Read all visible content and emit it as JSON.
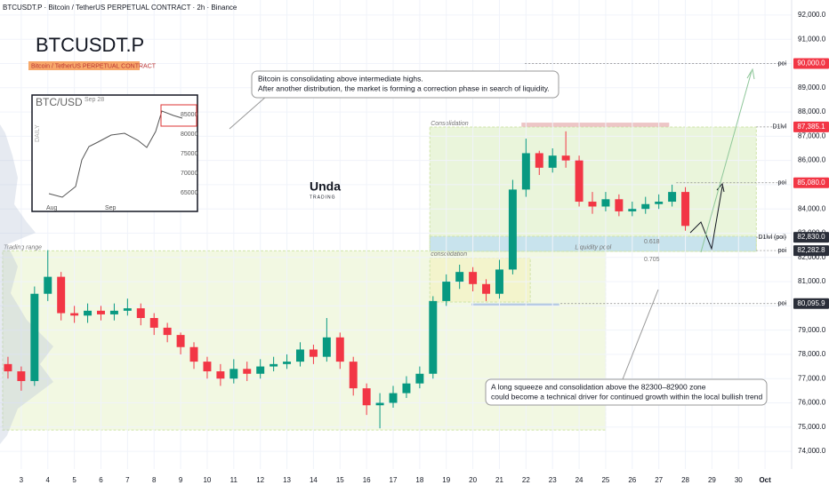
{
  "header": "BTCUSDT.P · Bitcoin / TetherUS PERPETUAL CONTRACT · 2h · Binance",
  "chart_data": {
    "type": "candlestick",
    "title": "BTCUSDT.P",
    "subtitle": "Bitcoin / TetherUS PERPETUAL CONTRACT",
    "x": [
      2.5,
      3,
      3.5,
      4,
      4.5,
      5,
      5.5,
      6,
      6.5,
      7,
      7.5,
      8,
      8.5,
      9,
      9.5,
      10,
      10.5,
      11,
      11.5,
      12,
      12.5,
      13,
      13.5,
      14,
      14.5,
      15,
      15.5,
      16,
      16.5,
      17,
      17.5,
      18,
      18.5,
      19,
      19.5,
      20,
      20.5,
      21,
      21.5,
      22,
      22.5,
      23,
      23.5,
      24,
      24.5,
      25,
      25.5,
      26,
      26.5,
      27,
      27.5,
      28
    ],
    "open": [
      77600,
      77300,
      76900,
      80500,
      81200,
      79700,
      79600,
      79800,
      79650,
      79800,
      79900,
      79500,
      79100,
      78800,
      78300,
      77700,
      77300,
      77000,
      77400,
      77200,
      77500,
      77600,
      77700,
      78200,
      77900,
      78700,
      77700,
      76600,
      75900,
      76000,
      76400,
      76800,
      77200,
      80200,
      81000,
      81400,
      80900,
      80500,
      81500,
      84800,
      86300,
      85700,
      86200,
      86000,
      84300,
      84100,
      84400,
      83900,
      84000,
      84200,
      84300,
      84700
    ],
    "high": [
      77900,
      77500,
      80800,
      82300,
      81400,
      80000,
      80100,
      80000,
      80100,
      80300,
      80100,
      79700,
      79300,
      78900,
      78500,
      77900,
      77600,
      77800,
      77700,
      77800,
      77900,
      78000,
      78500,
      78400,
      79500,
      78900,
      77900,
      76800,
      76400,
      76700,
      77100,
      77500,
      80400,
      81300,
      81700,
      81600,
      81100,
      81900,
      85200,
      86900,
      86400,
      86500,
      87200,
      86200,
      84700,
      84700,
      84600,
      84300,
      84500,
      84600,
      85000,
      84900
    ],
    "low": [
      77000,
      76500,
      76700,
      80200,
      79400,
      79300,
      79300,
      79400,
      79400,
      79600,
      79200,
      78800,
      78500,
      78000,
      77400,
      77000,
      76700,
      76800,
      76900,
      77000,
      77300,
      77400,
      77500,
      77600,
      77700,
      77400,
      76300,
      75500,
      74950,
      75800,
      76200,
      76600,
      77000,
      80000,
      80700,
      80600,
      80200,
      80300,
      81300,
      84500,
      85400,
      85500,
      85700,
      84100,
      83800,
      83900,
      83700,
      83700,
      83800,
      84000,
      84100,
      83100
    ],
    "close": [
      77300,
      76900,
      80500,
      81200,
      79700,
      79600,
      79800,
      79650,
      79800,
      79900,
      79500,
      79100,
      78800,
      78300,
      77700,
      77300,
      77000,
      77400,
      77200,
      77500,
      77600,
      77700,
      78200,
      77900,
      78700,
      77700,
      76600,
      75900,
      76000,
      76400,
      76800,
      77200,
      80200,
      81000,
      81400,
      80900,
      80500,
      81500,
      84800,
      86300,
      85700,
      86200,
      86000,
      84300,
      84100,
      84400,
      83900,
      84000,
      84200,
      84300,
      84700,
      83300
    ],
    "up_color": "#089981",
    "down_color": "#f23645",
    "grid": true,
    "xlim": [
      2.2,
      32
    ],
    "xticks": [
      3,
      4,
      5,
      6,
      7,
      8,
      9,
      10,
      11,
      12,
      13,
      14,
      15,
      16,
      17,
      18,
      19,
      20,
      21,
      22,
      23,
      24,
      25,
      26,
      27,
      28,
      29,
      30,
      {
        "value": 31,
        "label": "Oct"
      }
    ],
    "ylim": [
      73270,
      92620
    ],
    "yticks": [
      {
        "value": 74000,
        "label": "74,000.0"
      },
      {
        "value": 75000,
        "label": "75,000.0"
      },
      {
        "value": 76000,
        "label": "76,000.0"
      },
      {
        "value": 77000,
        "label": "77,000.0"
      },
      {
        "value": 78000,
        "label": "78,000.0"
      },
      {
        "value": 79000,
        "label": "79,000.0"
      },
      {
        "value": 80000,
        "label": "80,000.0"
      },
      {
        "value": 81000,
        "label": "81,000.0"
      },
      {
        "value": 82000,
        "label": "82,000.0"
      },
      {
        "value": 83000,
        "label": "83,000.0"
      },
      {
        "value": 84000,
        "label": "84,000.0"
      },
      {
        "value": 85000,
        "label": "85,000.0"
      },
      {
        "value": 86000,
        "label": "86,000.0"
      },
      {
        "value": 87000,
        "label": "87,000.0"
      },
      {
        "value": 88000,
        "label": "88,000.0"
      },
      {
        "value": 89000,
        "label": "89,000.0"
      },
      {
        "value": 90000,
        "label": "90,000.0"
      },
      {
        "value": 91000,
        "label": "91,000.0"
      },
      {
        "value": 92000,
        "label": "92,000.0"
      }
    ],
    "levels": [
      {
        "value": 90000,
        "label": "90,000.0",
        "tag": "poi",
        "color": "#f23645",
        "x_start": 21.96
      },
      {
        "value": 87385.1,
        "label": "87,385.1",
        "tag": "D1lvl",
        "color": "#f23645",
        "x_start": 30.67
      },
      {
        "value": 85080,
        "label": "85,080.0",
        "tag": "poi",
        "color": "#f23645",
        "x_start": 27.66
      },
      {
        "value": 82830,
        "label": "82,830.0",
        "tag": "D1lvl (poi)",
        "color": "#2a2e39",
        "x_start": 30.67
      },
      {
        "value": 82282.8,
        "label": "82,282.8",
        "tag": "poi",
        "color": "#2a2e39",
        "x_start": 30.67
      },
      {
        "value": 80095.9,
        "label": "80,095.9",
        "tag": "poi",
        "color": "#2a2e39",
        "x_start": 23.3
      }
    ],
    "zones": [
      {
        "label": "Trading range",
        "x": [
          2.3,
          25.0
        ],
        "y": [
          74880,
          82270
        ],
        "color": "#eef6d8"
      },
      {
        "label": "Consolidation",
        "x": [
          18.38,
          30.67
        ],
        "y": [
          82260,
          87380
        ],
        "color": "#e3f2cf"
      },
      {
        "label": "consolidation",
        "x": [
          18.38,
          22.16
        ],
        "y": [
          80160,
          81990
        ],
        "color": "#f3f3c4"
      },
      {
        "label": "Liquidity pool",
        "x": [
          18.38,
          30.67
        ],
        "y": [
          82250,
          82870
        ],
        "color": "#bcdcf3"
      },
      {
        "x": [
          21.83,
          27.39
        ],
        "y": [
          87385,
          87560
        ],
        "color": "#e7b3b3"
      },
      {
        "x": [
          19.95,
          23.25
        ],
        "y": [
          80000,
          80100
        ],
        "color": "#9fb9e3"
      }
    ],
    "fib_618": "0.618",
    "fib_705": "0.705",
    "note_1": [
      "Bitcoin is consolidating above intermediate highs.",
      "After another distribution, the market is forming a correction phase in search of liquidity."
    ],
    "note_2": [
      "A long squeeze and consolidation above the 82300–82900 zone",
      "could become a technical driver for continued growth within the local bullish trend"
    ]
  },
  "inset": {
    "title": "BTC/USD",
    "date": "Sep 28",
    "interval": "DAILY",
    "prices": [
      "85000",
      "80000",
      "75000",
      "70000",
      "65000"
    ],
    "months": [
      "Aug",
      "Sep"
    ]
  },
  "logo": {
    "name": "Unda",
    "sub": "TRADING"
  }
}
